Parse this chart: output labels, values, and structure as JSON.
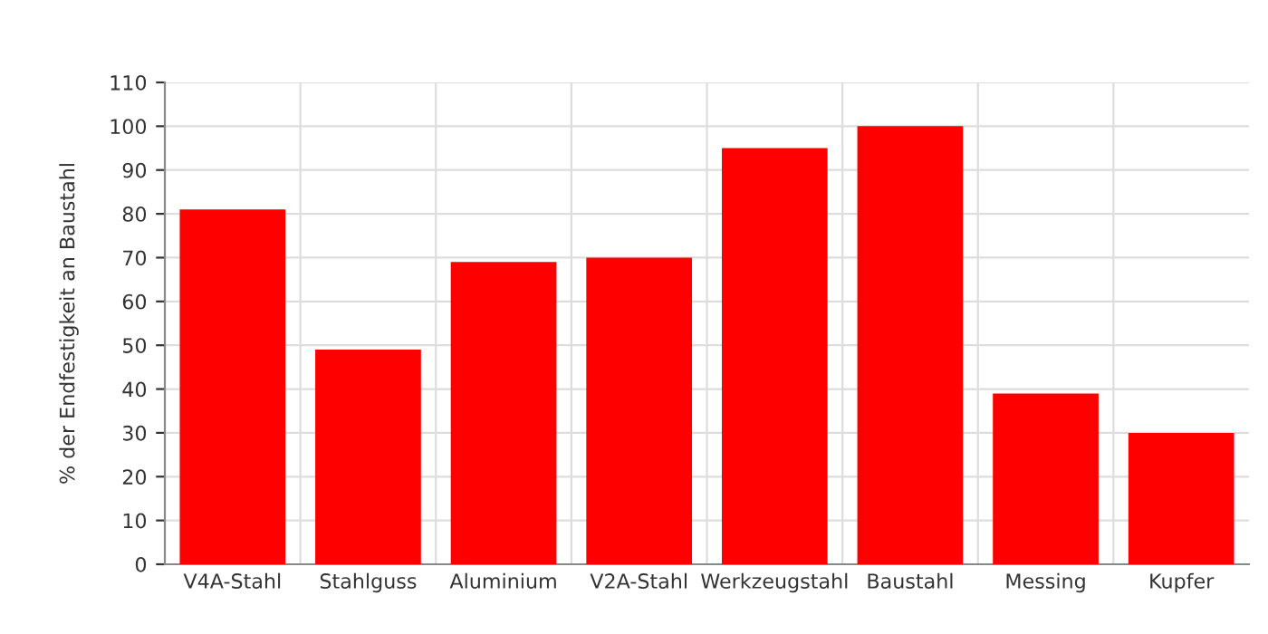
{
  "chart_data": {
    "type": "bar",
    "ylabel": "% der Endfestigkeit an Baustahl",
    "categories": [
      "V4A-Stahl",
      "Stahlguss",
      "Aluminium",
      "V2A-Stahl",
      "Werkzeugstahl",
      "Baustahl",
      "Messing",
      "Kupfer"
    ],
    "values": [
      81,
      49,
      69,
      70,
      95,
      100,
      39,
      30
    ],
    "color": "#ff0000",
    "ylim": [
      0,
      110
    ],
    "yticks": [
      0,
      10,
      20,
      30,
      40,
      50,
      60,
      70,
      80,
      90,
      100,
      110
    ],
    "grid": true
  }
}
